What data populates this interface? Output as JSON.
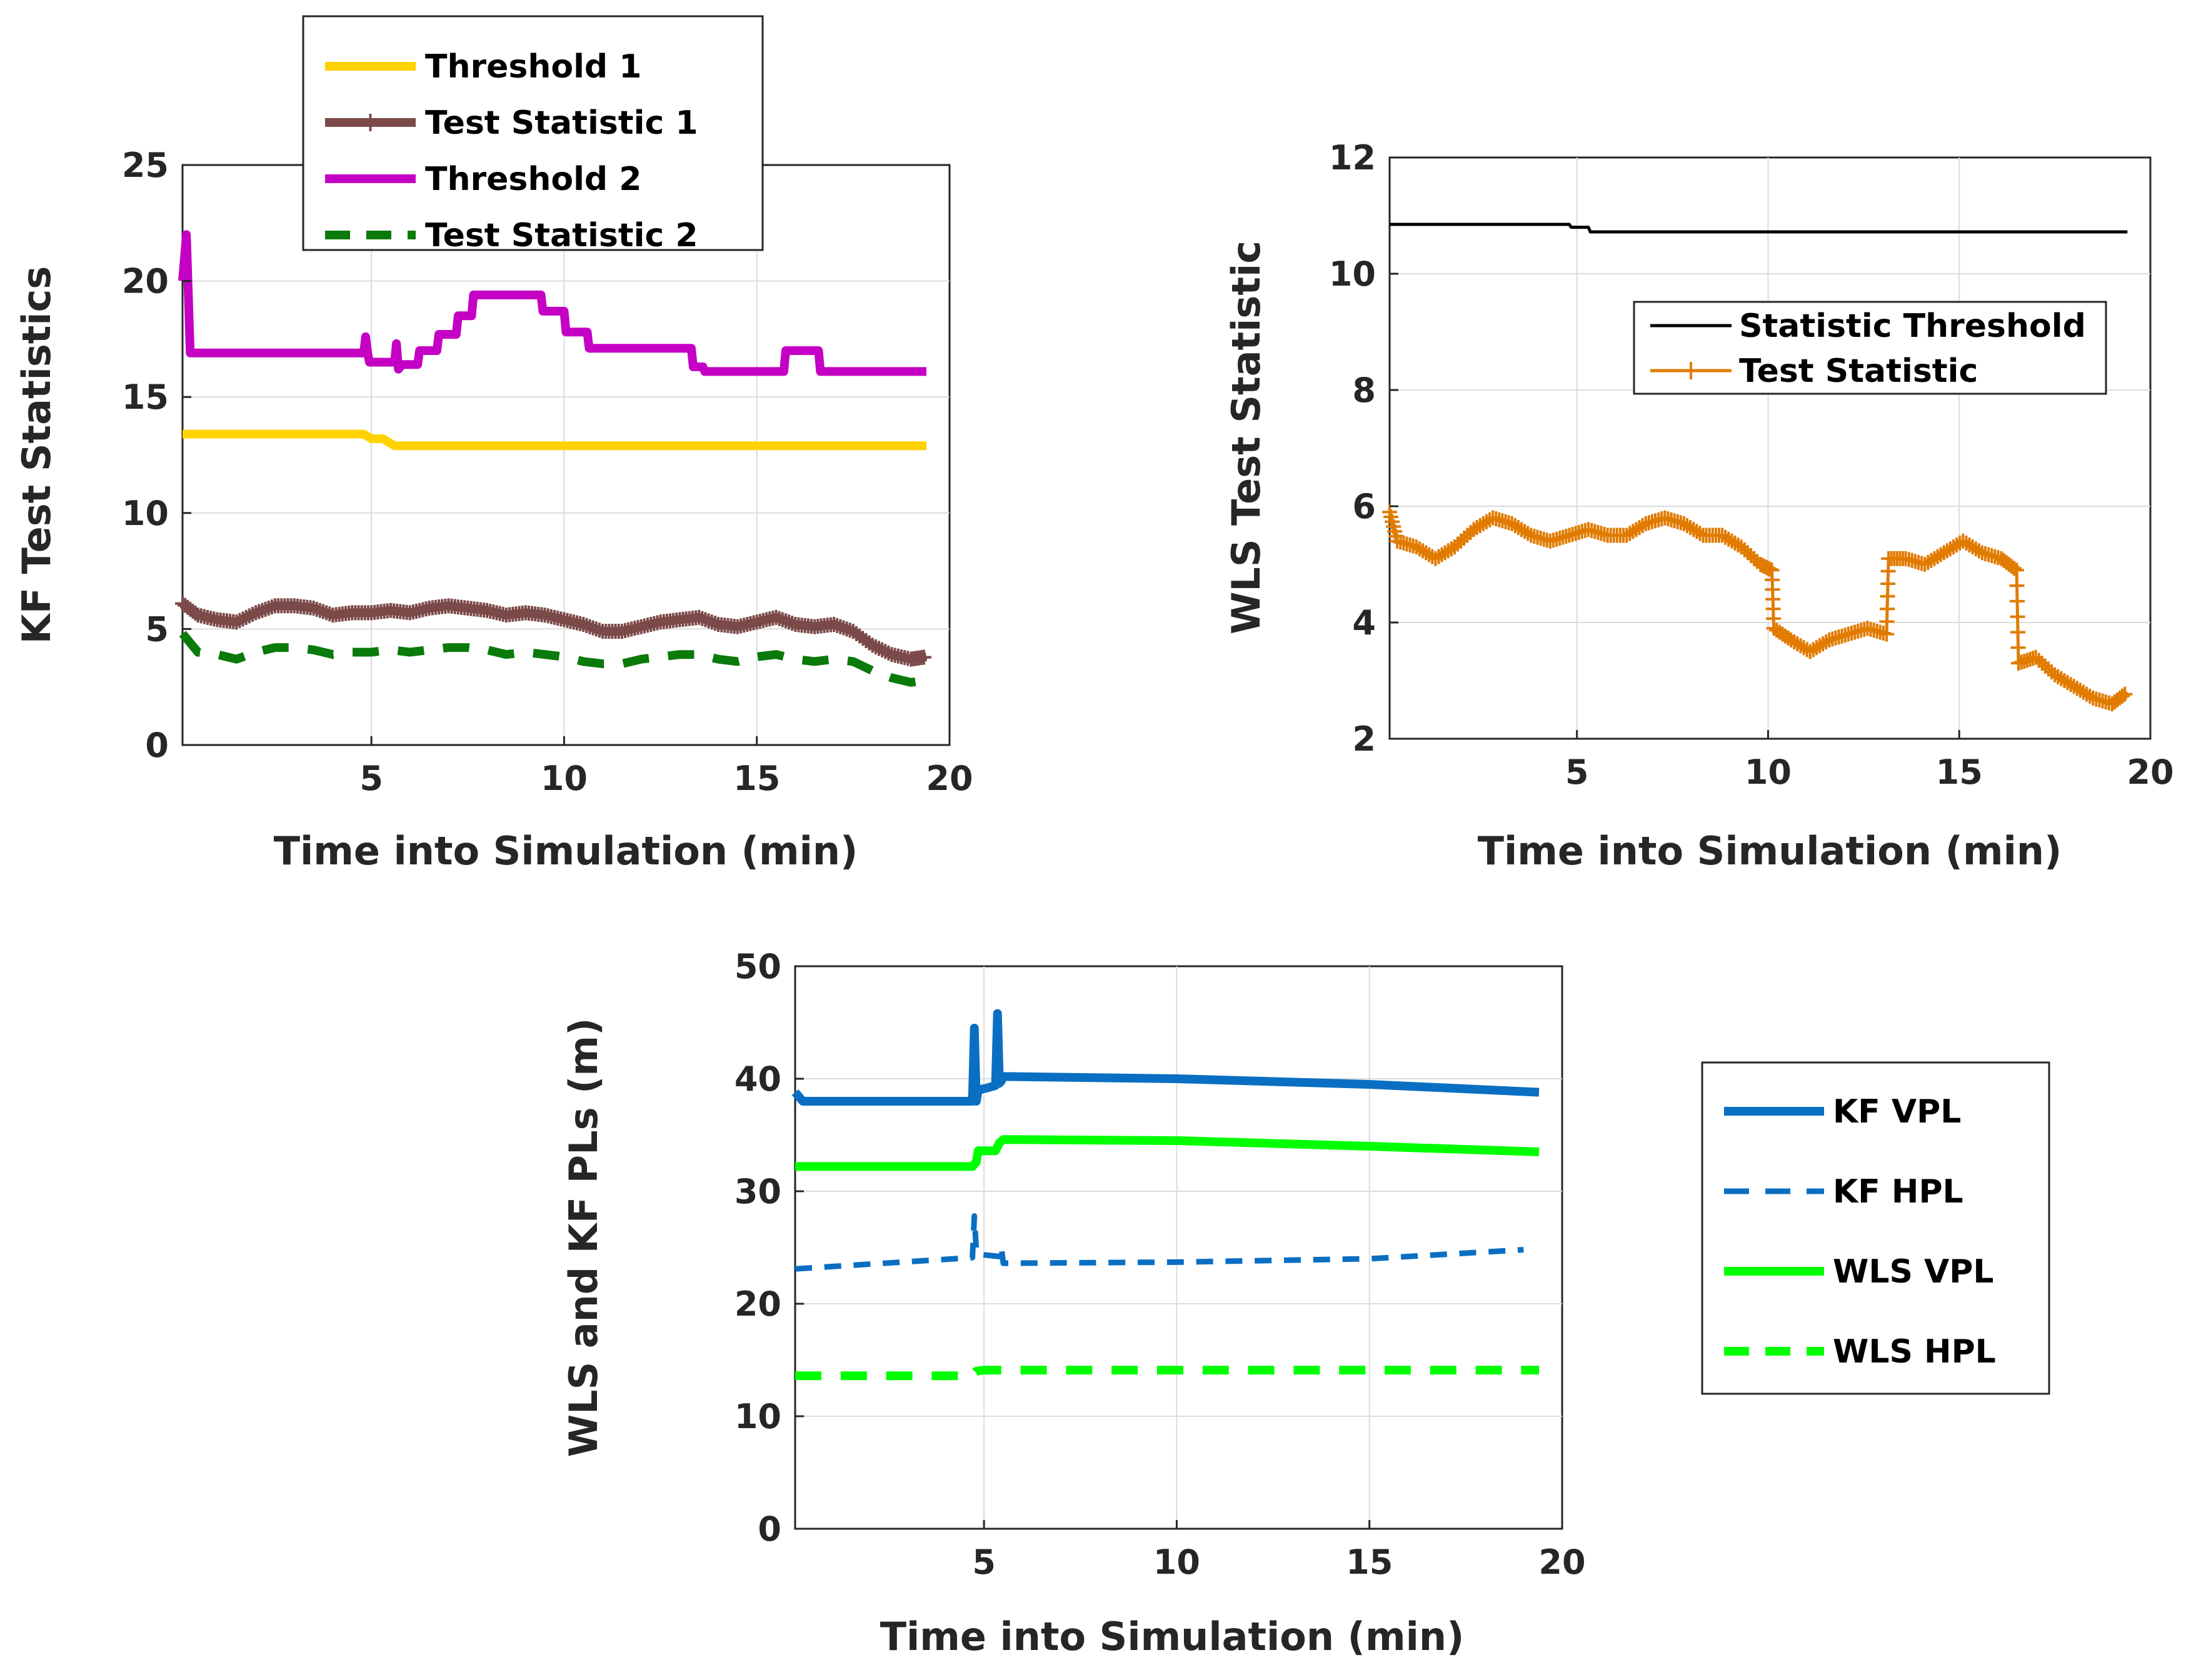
{
  "chart_data": [
    {
      "type": "line",
      "name": "kf-test-statistics",
      "xlabel": "Time into Simulation (min)",
      "ylabel": "KF Test Statistics",
      "xlim": [
        0.1,
        20
      ],
      "ylim": [
        0,
        25
      ],
      "xticks": [
        5,
        10,
        15,
        20
      ],
      "yticks": [
        0,
        5,
        10,
        15,
        20,
        25
      ],
      "legend_position": "top-center",
      "series": [
        {
          "name": "Threshold 1",
          "color": "#FFD200",
          "style": "solid",
          "width": "thick",
          "marker": "none",
          "x": [
            0.1,
            4.8,
            5.0,
            5.3,
            5.6,
            19.4
          ],
          "y": [
            13.4,
            13.4,
            13.2,
            13.2,
            12.9,
            12.9
          ]
        },
        {
          "name": "Test Statistic 1",
          "color": "#7B4A48",
          "style": "solid",
          "width": "thick",
          "marker": "plus",
          "x": [
            0.1,
            0.5,
            1.0,
            1.5,
            2.0,
            2.5,
            3.0,
            3.5,
            4.0,
            4.5,
            5.0,
            5.5,
            6.0,
            6.5,
            7.0,
            7.5,
            8.0,
            8.5,
            9.0,
            9.5,
            10.0,
            10.5,
            11.0,
            11.5,
            12.0,
            12.5,
            13.0,
            13.5,
            14.0,
            14.5,
            15.0,
            15.5,
            16.0,
            16.5,
            17.0,
            17.5,
            18.0,
            18.5,
            19.0,
            19.4
          ],
          "y": [
            6.1,
            5.6,
            5.4,
            5.3,
            5.7,
            6.0,
            6.0,
            5.9,
            5.6,
            5.7,
            5.7,
            5.8,
            5.7,
            5.9,
            6.0,
            5.9,
            5.8,
            5.6,
            5.7,
            5.6,
            5.4,
            5.2,
            4.9,
            4.9,
            5.1,
            5.3,
            5.4,
            5.5,
            5.2,
            5.1,
            5.3,
            5.5,
            5.2,
            5.1,
            5.2,
            4.9,
            4.3,
            3.9,
            3.7,
            3.8
          ]
        },
        {
          "name": "Threshold 2",
          "color": "#C400C4",
          "style": "solid",
          "width": "thick",
          "marker": "none",
          "x": [
            0.1,
            0.2,
            0.3,
            4.8,
            4.85,
            4.9,
            4.95,
            5.6,
            5.65,
            5.7,
            5.8,
            6.2,
            6.25,
            6.7,
            6.75,
            7.2,
            7.25,
            7.6,
            7.65,
            9.4,
            9.45,
            10.0,
            10.05,
            10.6,
            10.65,
            13.3,
            13.35,
            13.6,
            13.65,
            15.7,
            15.75,
            16.6,
            16.65,
            19.4
          ],
          "y": [
            20.0,
            22.0,
            16.9,
            16.9,
            17.6,
            16.9,
            16.5,
            16.5,
            17.3,
            16.2,
            16.4,
            16.4,
            17.0,
            17.0,
            17.7,
            17.7,
            18.5,
            18.5,
            19.4,
            19.4,
            18.7,
            18.7,
            17.8,
            17.8,
            17.1,
            17.1,
            16.3,
            16.3,
            16.1,
            16.1,
            17.0,
            17.0,
            16.1,
            16.1
          ]
        },
        {
          "name": "Test Statistic 2",
          "color": "#0A7A0A",
          "style": "dashed",
          "width": "thick",
          "marker": "none",
          "x": [
            0.1,
            0.5,
            1.0,
            1.5,
            2.0,
            2.5,
            3.0,
            3.5,
            4.0,
            4.5,
            5.0,
            5.5,
            6.0,
            6.5,
            7.0,
            7.5,
            8.0,
            8.5,
            9.0,
            9.5,
            10.0,
            10.5,
            11.0,
            11.5,
            12.0,
            12.5,
            13.0,
            13.5,
            14.0,
            14.5,
            15.0,
            15.5,
            16.0,
            16.5,
            17.0,
            17.5,
            18.0,
            18.5,
            19.0,
            19.4
          ],
          "y": [
            4.8,
            4.0,
            3.9,
            3.7,
            4.0,
            4.2,
            4.2,
            4.1,
            3.9,
            4.0,
            4.0,
            4.1,
            4.0,
            4.1,
            4.2,
            4.2,
            4.1,
            3.9,
            4.0,
            3.9,
            3.8,
            3.6,
            3.5,
            3.5,
            3.7,
            3.8,
            3.9,
            3.9,
            3.7,
            3.6,
            3.8,
            3.9,
            3.7,
            3.6,
            3.7,
            3.6,
            3.2,
            2.9,
            2.7,
            2.8
          ]
        }
      ]
    },
    {
      "type": "line",
      "name": "wls-test-statistic",
      "xlabel": "Time into Simulation (min)",
      "ylabel": "WLS Test Statistic",
      "xlim": [
        0.1,
        20
      ],
      "ylim": [
        2,
        12
      ],
      "xticks": [
        5,
        10,
        15,
        20
      ],
      "yticks": [
        2,
        4,
        6,
        8,
        10,
        12
      ],
      "legend_position": "upper-right",
      "series": [
        {
          "name": "Statistic Threshold",
          "color": "#000000",
          "style": "solid",
          "width": "thin",
          "marker": "none",
          "x": [
            0.1,
            4.8,
            4.85,
            5.3,
            5.35,
            19.4
          ],
          "y": [
            10.85,
            10.85,
            10.8,
            10.8,
            10.72,
            10.72
          ]
        },
        {
          "name": "Test Statistic",
          "color": "#E07B00",
          "style": "solid",
          "width": "thin",
          "marker": "plus",
          "x": [
            0.1,
            0.3,
            0.8,
            1.3,
            1.8,
            2.3,
            2.8,
            3.3,
            3.8,
            4.3,
            4.8,
            5.3,
            5.8,
            6.3,
            6.8,
            7.3,
            7.8,
            8.3,
            8.8,
            9.3,
            9.8,
            10.1,
            10.15,
            10.6,
            11.1,
            11.6,
            12.1,
            12.6,
            13.1,
            13.15,
            13.6,
            14.1,
            14.6,
            15.1,
            15.6,
            16.1,
            16.5,
            16.55,
            17.0,
            17.5,
            18.0,
            18.5,
            19.0,
            19.4
          ],
          "y": [
            5.9,
            5.4,
            5.3,
            5.1,
            5.3,
            5.6,
            5.8,
            5.7,
            5.5,
            5.4,
            5.5,
            5.6,
            5.5,
            5.5,
            5.7,
            5.8,
            5.7,
            5.5,
            5.5,
            5.3,
            5.0,
            4.9,
            3.9,
            3.7,
            3.5,
            3.7,
            3.8,
            3.9,
            3.8,
            5.1,
            5.1,
            5.0,
            5.2,
            5.4,
            5.2,
            5.1,
            4.9,
            3.3,
            3.4,
            3.1,
            2.9,
            2.7,
            2.6,
            2.8
          ]
        }
      ]
    },
    {
      "type": "line",
      "name": "wls-kf-protection-levels",
      "xlabel": "Time into Simulation (min)",
      "ylabel": "WLS and KF PLs (m)",
      "xlim": [
        0.1,
        20
      ],
      "ylim": [
        0,
        50
      ],
      "xticks": [
        5,
        10,
        15,
        20
      ],
      "yticks": [
        0,
        10,
        20,
        30,
        40,
        50
      ],
      "legend_position": "outside-right",
      "series": [
        {
          "name": "KF VPL",
          "color": "#0A6FC2",
          "style": "solid",
          "width": "thick",
          "marker": "none",
          "x": [
            0.1,
            0.3,
            4.7,
            4.75,
            4.8,
            4.85,
            5.1,
            5.3,
            5.35,
            5.4,
            5.45,
            5.5,
            10.0,
            15.0,
            19.4
          ],
          "y": [
            38.8,
            38.0,
            38.0,
            44.5,
            38.0,
            39.0,
            39.2,
            39.4,
            45.8,
            39.6,
            39.8,
            40.2,
            40.0,
            39.5,
            38.8
          ]
        },
        {
          "name": "KF HPL",
          "color": "#0A6FC2",
          "style": "dashed",
          "width": "medium",
          "marker": "none",
          "x": [
            0.1,
            4.7,
            4.75,
            4.8,
            4.85,
            5.4,
            5.45,
            5.5,
            10.0,
            15.0,
            19.0
          ],
          "y": [
            23.1,
            24.1,
            27.8,
            24.8,
            24.4,
            24.2,
            25.0,
            23.6,
            23.7,
            24.0,
            24.8
          ]
        },
        {
          "name": "WLS VPL",
          "color": "#00FF00",
          "style": "solid",
          "width": "thick",
          "marker": "none",
          "x": [
            0.1,
            4.7,
            4.8,
            4.85,
            5.3,
            5.4,
            5.5,
            10.0,
            15.0,
            19.4
          ],
          "y": [
            32.2,
            32.2,
            32.6,
            33.6,
            33.6,
            34.3,
            34.6,
            34.5,
            34.0,
            33.5
          ]
        },
        {
          "name": "WLS HPL",
          "color": "#00FF00",
          "style": "dashed",
          "width": "thick",
          "marker": "none",
          "x": [
            0.1,
            4.7,
            4.8,
            5.0,
            10.0,
            19.4
          ],
          "y": [
            13.6,
            13.6,
            14.0,
            14.1,
            14.1,
            14.1
          ]
        }
      ]
    }
  ]
}
